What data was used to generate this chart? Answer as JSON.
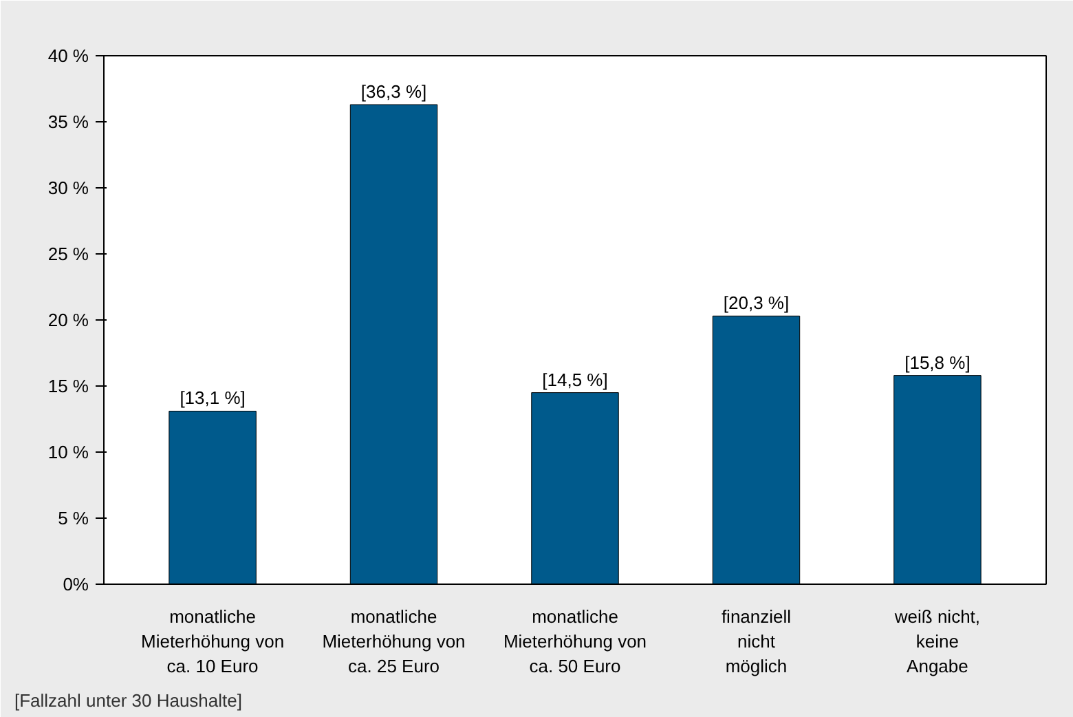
{
  "chart_data": {
    "type": "bar",
    "categories": [
      "monatliche\nMieterhöhung von\nca. 10 Euro",
      "monatliche\nMieterhöhung von\nca. 25 Euro",
      "monatliche\nMieterhöhung von\nca. 50 Euro",
      "finanziell\nnicht\nmöglich",
      "weiß nicht,\nkeine\nAngabe"
    ],
    "values": [
      13.1,
      36.3,
      14.5,
      20.3,
      15.8
    ],
    "value_labels": [
      "[13,1 %]",
      "[36,3 %]",
      "[14,5 %]",
      "[20,3 %]",
      "[15,8 %]"
    ],
    "color": "#005a8c",
    "ylim": [
      0,
      40
    ],
    "yticks": [
      {
        "value": 0,
        "label": "0%"
      },
      {
        "value": 5,
        "label": "5 %"
      },
      {
        "value": 10,
        "label": "10 %"
      },
      {
        "value": 15,
        "label": "15 %"
      },
      {
        "value": 20,
        "label": "20 %"
      },
      {
        "value": 25,
        "label": "25 %"
      },
      {
        "value": 30,
        "label": "30 %"
      },
      {
        "value": 35,
        "label": "35 %"
      },
      {
        "value": 40,
        "label": "40 %"
      }
    ],
    "grid": false,
    "annotations": [
      "[Fallzahl unter 30 Haushalte]"
    ]
  }
}
